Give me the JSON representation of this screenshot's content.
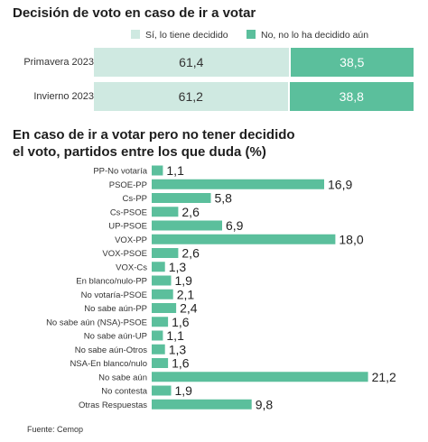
{
  "colors": {
    "si": "#cfe9e1",
    "no": "#5bbf9c",
    "bar": "#5bbf9c"
  },
  "chart_data": [
    {
      "type": "bar",
      "title": "Decisión de voto en caso de ir a votar",
      "categories": [
        "Primavera 2023",
        "Invierno 2023"
      ],
      "series": [
        {
          "name": "Sí, lo tiene decidido",
          "values": [
            61.4,
            61.2
          ],
          "labels": [
            "61,4",
            "61,2"
          ]
        },
        {
          "name": "No, no lo ha decidido aún",
          "values": [
            38.5,
            38.8
          ],
          "labels": [
            "38,5",
            "38,8"
          ]
        }
      ],
      "stacked": true,
      "orientation": "horizontal",
      "legend": "top"
    },
    {
      "type": "bar",
      "title": "En caso de ir a votar pero no tener decidido el voto, partidos entre los que duda (%)",
      "title_lines": [
        "En caso de ir a votar pero no tener decidido",
        "el voto, partidos entre los que duda (%)"
      ],
      "orientation": "horizontal",
      "categories": [
        "PP-No votaría",
        "PSOE-PP",
        "Cs-PP",
        "Cs-PSOE",
        "UP-PSOE",
        "VOX-PP",
        "VOX-PSOE",
        "VOX-Cs",
        "En blanco/nulo-PP",
        "No votaría-PSOE",
        "No sabe aún-PP",
        "No sabe aún (NSA)-PSOE",
        "No sabe aún-UP",
        "No sabe aún-Otros",
        "NSA-En blanco/nulo",
        "No sabe aún",
        "No contesta",
        "Otras Respuestas"
      ],
      "values": [
        1.1,
        16.9,
        5.8,
        2.6,
        6.9,
        18.0,
        2.6,
        1.3,
        1.9,
        2.1,
        2.4,
        1.6,
        1.1,
        1.3,
        1.6,
        21.2,
        1.9,
        9.8
      ],
      "labels": [
        "1,1",
        "16,9",
        "5,8",
        "2,6",
        "6,9",
        "18,0",
        "2,6",
        "1,3",
        "1,9",
        "2,1",
        "2,4",
        "1,6",
        "1,1",
        "1,3",
        "1,6",
        "21,2",
        "1,9",
        "9,8"
      ]
    }
  ],
  "source": "Fuente: Cemop"
}
